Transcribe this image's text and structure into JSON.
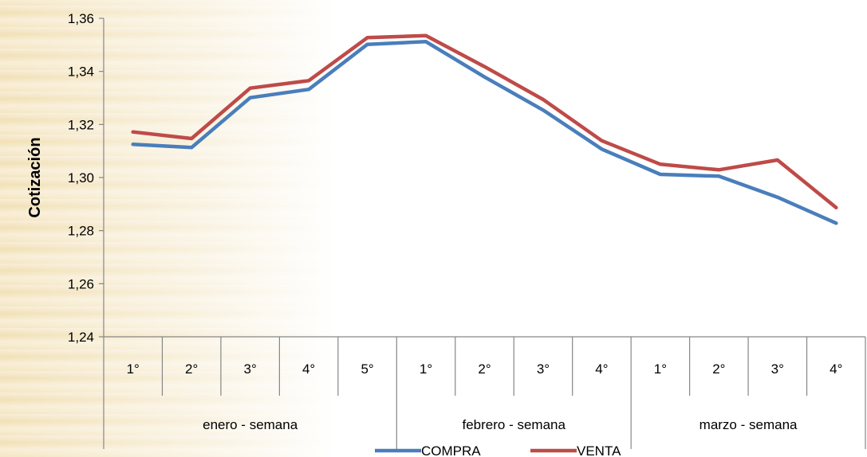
{
  "chart_data": {
    "type": "line",
    "title": "",
    "xlabel": "",
    "ylabel": "Cotización",
    "ylim": [
      1.24,
      1.36
    ],
    "yticks": [
      "1,24",
      "1,26",
      "1,28",
      "1,30",
      "1,32",
      "1,34",
      "1,36"
    ],
    "categories": [
      "1°",
      "2°",
      "3°",
      "4°",
      "5°",
      "1°",
      "2°",
      "3°",
      "4°",
      "1°",
      "2°",
      "3°",
      "4°"
    ],
    "groups": [
      {
        "label": "enero - semana",
        "count": 5
      },
      {
        "label": "febrero - semana",
        "count": 4
      },
      {
        "label": "marzo - semana",
        "count": 4
      }
    ],
    "series": [
      {
        "name": "COMPRA",
        "color": "#4a7ebb",
        "values": [
          1.3125,
          1.3113,
          1.3301,
          1.3332,
          1.3502,
          1.3512,
          1.3379,
          1.3254,
          1.3107,
          1.3012,
          1.3005,
          1.2926,
          1.2828
        ]
      },
      {
        "name": "VENTA",
        "color": "#be4b48",
        "values": [
          1.3172,
          1.3147,
          1.3337,
          1.3365,
          1.3527,
          1.3535,
          1.3418,
          1.3294,
          1.3139,
          1.305,
          1.3029,
          1.3066,
          1.2887
        ]
      }
    ],
    "legend": "bottom",
    "grid": false
  }
}
